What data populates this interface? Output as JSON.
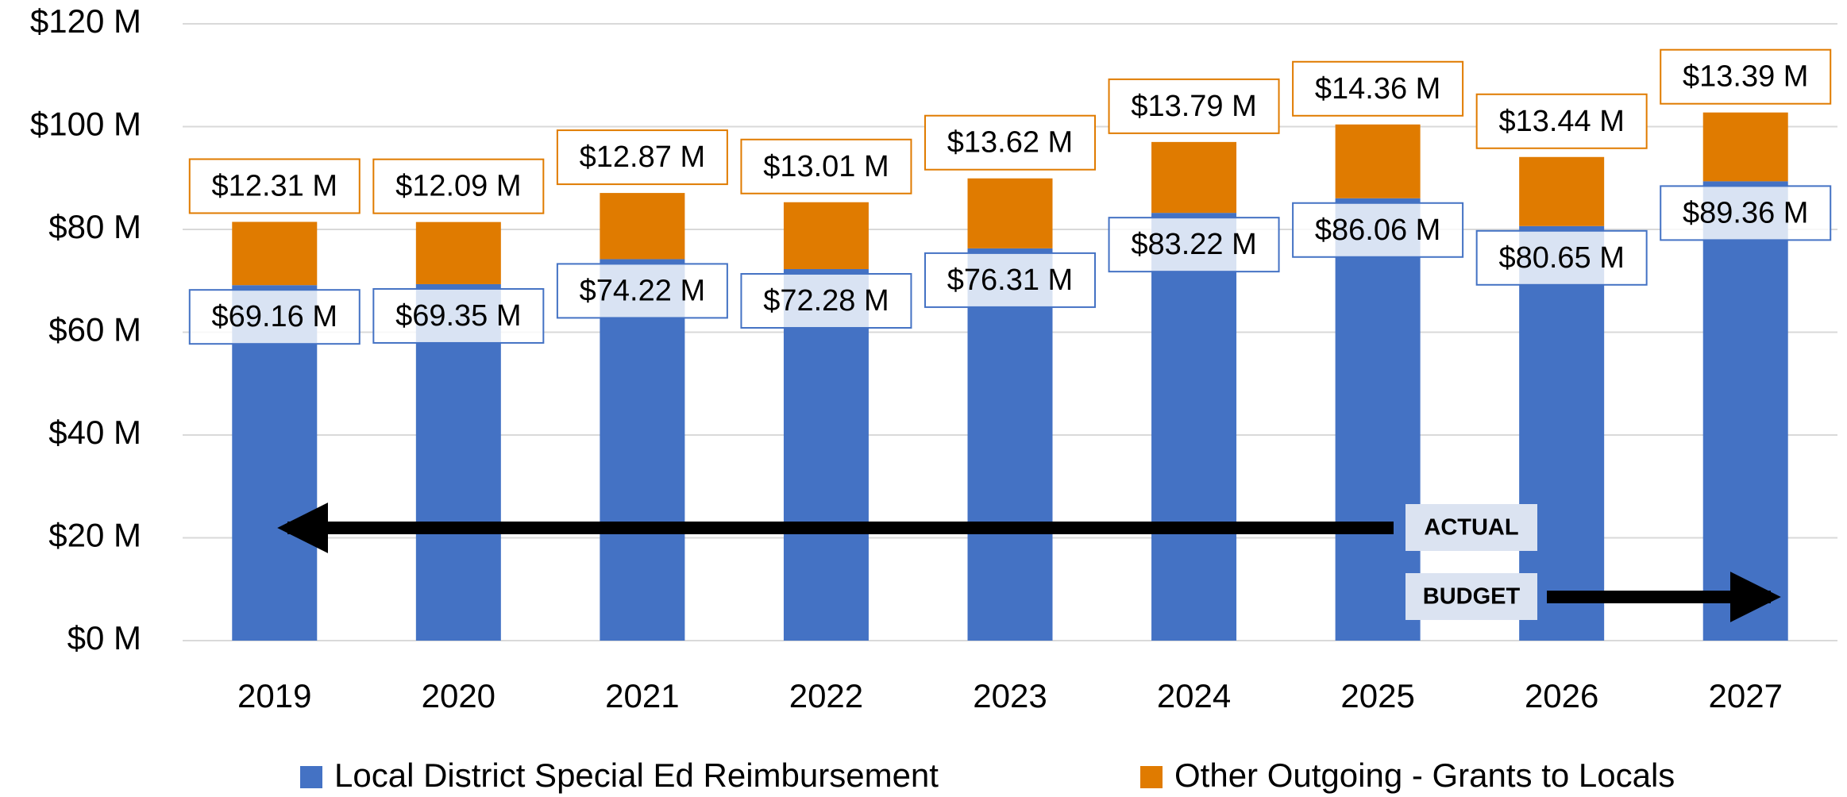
{
  "chart_data": {
    "type": "bar",
    "stacked": true,
    "categories": [
      "2019",
      "2020",
      "2021",
      "2022",
      "2023",
      "2024",
      "2025",
      "2026",
      "2027"
    ],
    "series": [
      {
        "name": "Local District Special Ed Reimbursement",
        "color": "#4472c4",
        "values": [
          69.16,
          69.35,
          74.22,
          72.28,
          76.31,
          83.22,
          86.06,
          80.65,
          89.36
        ],
        "value_labels": [
          "$69.16 M",
          "$69.35 M",
          "$74.22 M",
          "$72.28 M",
          "$76.31 M",
          "$83.22 M",
          "$86.06 M",
          "$80.65 M",
          "$89.36 M"
        ]
      },
      {
        "name": "Other Outgoing - Grants to Locals",
        "color": "#e07b00",
        "values": [
          12.31,
          12.09,
          12.87,
          13.01,
          13.62,
          13.79,
          14.36,
          13.44,
          13.39
        ],
        "value_labels": [
          "$12.31 M",
          "$12.09 M",
          "$12.87 M",
          "$13.01 M",
          "$13.62 M",
          "$13.79 M",
          "$14.36 M",
          "$13.44 M",
          "$13.39 M"
        ]
      }
    ],
    "ylim": [
      0,
      120
    ],
    "yticks": [
      {
        "value": 0,
        "label": "$0 M"
      },
      {
        "value": 20,
        "label": "$20 M"
      },
      {
        "value": 40,
        "label": "$40 M"
      },
      {
        "value": 60,
        "label": "$60 M"
      },
      {
        "value": 80,
        "label": "$80 M"
      },
      {
        "value": 100,
        "label": "$100 M"
      },
      {
        "value": 120,
        "label": "$120 M"
      }
    ],
    "grid": true,
    "legend": "bottom",
    "annotations": [
      "ACTUAL",
      "BUDGET"
    ]
  }
}
